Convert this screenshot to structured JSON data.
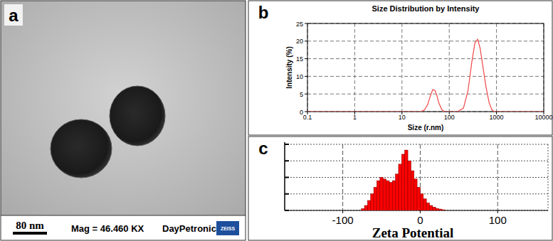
{
  "micrograph": {
    "panel_label": "a",
    "scale_bar": "80 nm",
    "magnification": "Mag = 46.460 KX",
    "operator": "DayPetronic",
    "logo": "ZEISS"
  },
  "chart_data": [
    {
      "type": "line",
      "panel_label": "b",
      "title": "Size Distribution by Intensity",
      "x_label": "Size (r.nm)",
      "y_label": "Intensity (%)",
      "x": [
        0.1,
        20,
        25,
        30,
        35,
        40,
        45,
        50,
        55,
        60,
        70,
        80,
        100,
        150,
        200,
        250,
        300,
        350,
        400,
        450,
        500,
        600,
        700,
        800,
        900,
        1000,
        10000
      ],
      "values": [
        0,
        0,
        0,
        0.5,
        2,
        4.5,
        6.3,
        6,
        4.5,
        2.5,
        0.5,
        0,
        0,
        0,
        1,
        6,
        14,
        19.5,
        20.5,
        18,
        14,
        7,
        2.5,
        0.5,
        0,
        0,
        0
      ],
      "color": "#f04848",
      "log": "x",
      "grid": true,
      "xlim": [
        0.1,
        10000
      ],
      "xticks": [
        0.1,
        1,
        10,
        100,
        1000,
        10000
      ],
      "ylim": [
        0,
        25
      ],
      "yticks": [
        0,
        5,
        10,
        15,
        20,
        25
      ]
    },
    {
      "type": "histogram",
      "panel_label": "c",
      "x_label": "Zeta Potential",
      "bins": [
        -76,
        -72,
        -68,
        -64,
        -60,
        -56,
        -52,
        -48,
        -44,
        -40,
        -36,
        -32,
        -28,
        -24,
        -20,
        -16,
        -12,
        -8,
        -4,
        0,
        4,
        8,
        12,
        16,
        20,
        24,
        28,
        32
      ],
      "values": [
        0.1,
        0.3,
        0.6,
        1.0,
        1.4,
        1.8,
        2.0,
        1.9,
        1.8,
        1.7,
        1.8,
        2.2,
        2.8,
        3.4,
        3.65,
        3.0,
        2.4,
        1.9,
        1.4,
        1.0,
        0.7,
        0.45,
        0.3,
        0.2,
        0.12,
        0.08,
        0.04
      ],
      "color": "#ff0000",
      "grid": true,
      "tick_labels": "x",
      "xlim": [
        -175,
        165
      ],
      "xticks": [
        -100,
        0,
        100
      ],
      "ylim": [
        0,
        4
      ],
      "yticks": [
        0,
        1,
        2,
        3,
        4
      ]
    }
  ]
}
